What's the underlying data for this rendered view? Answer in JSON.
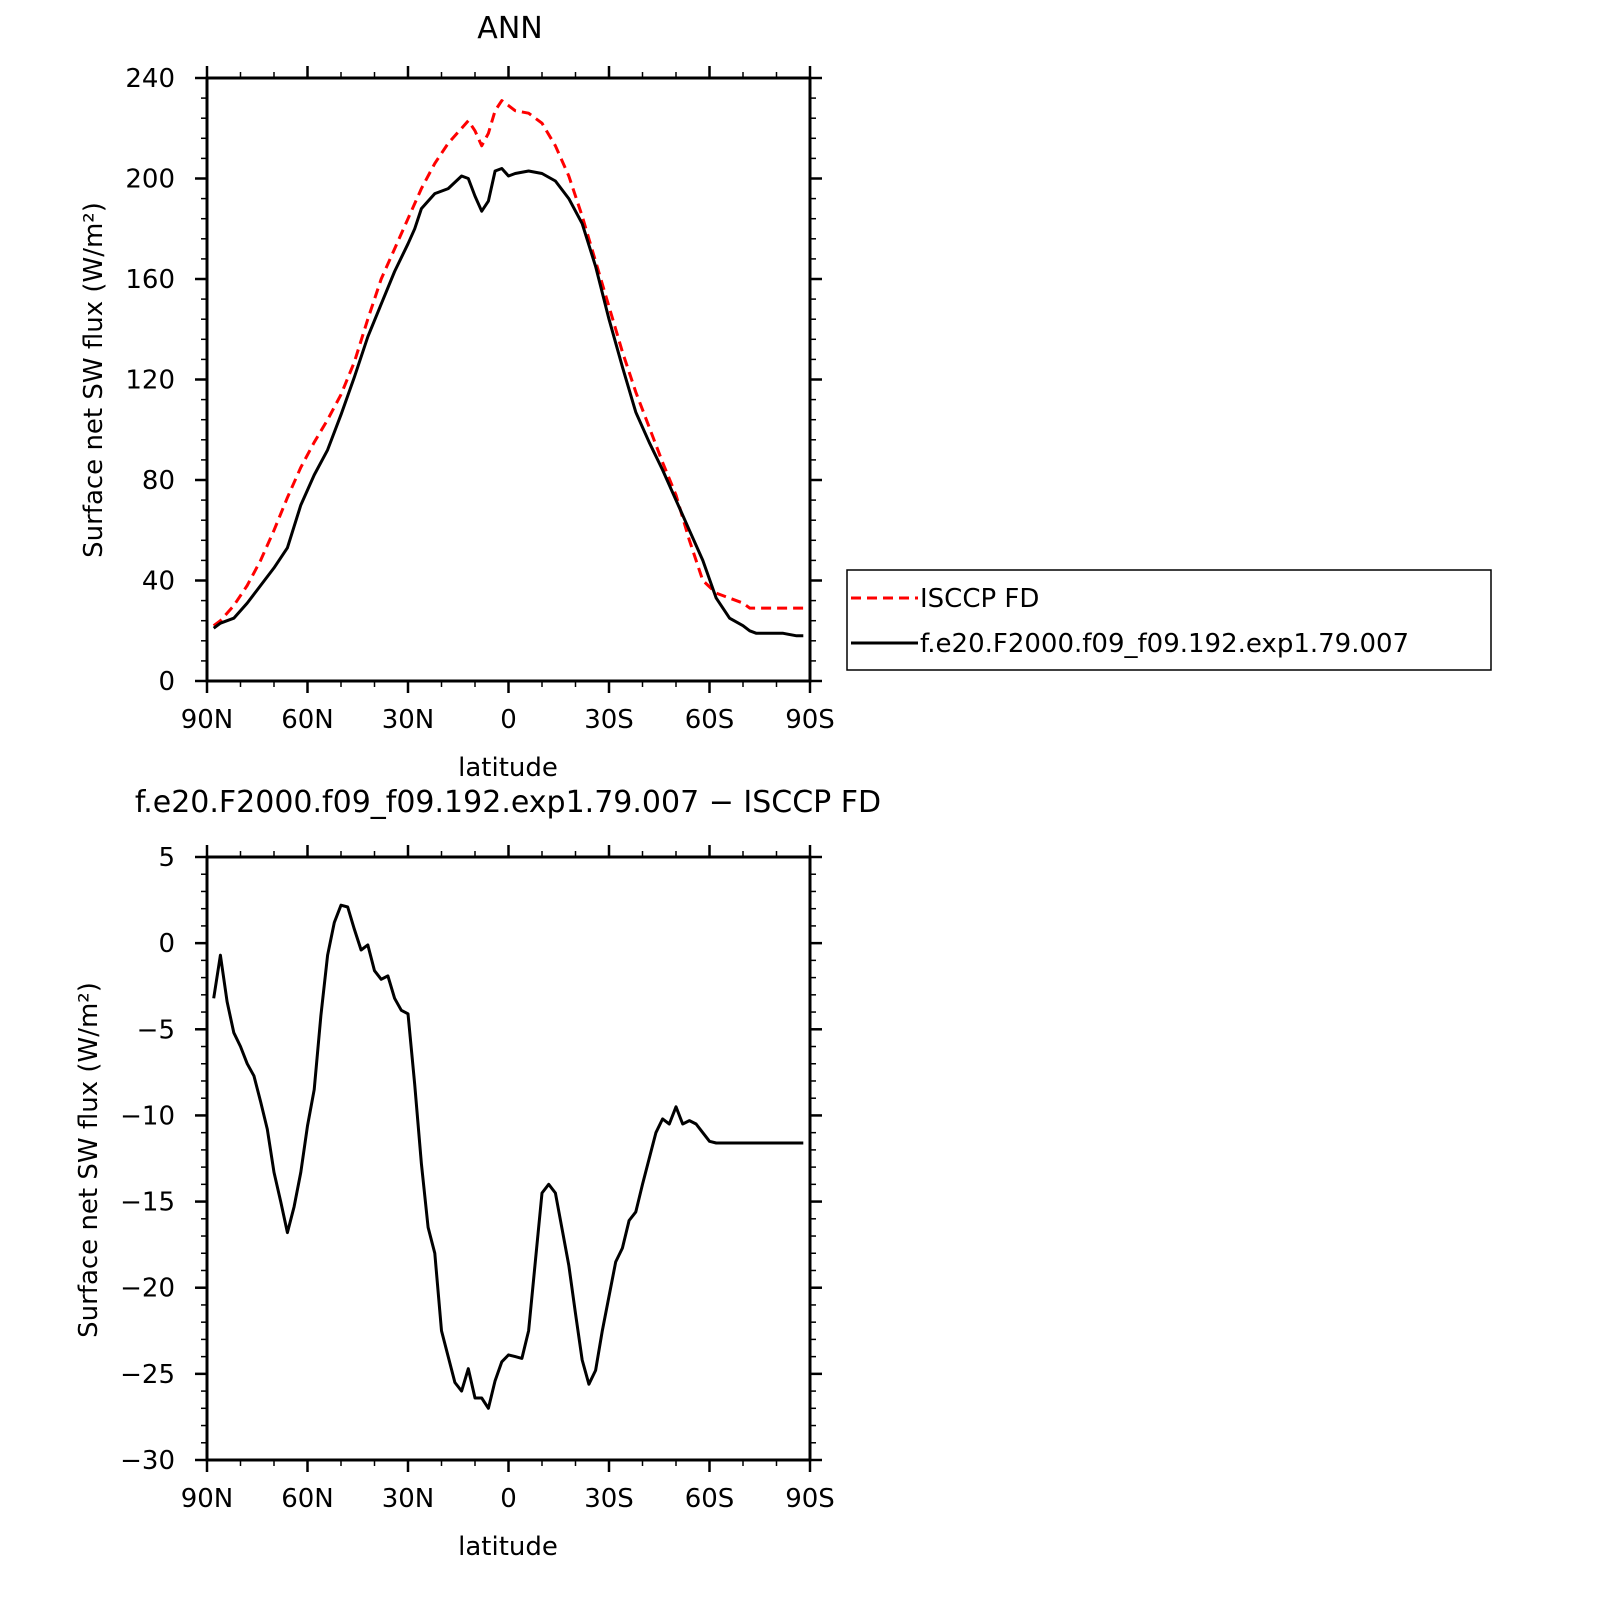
{
  "chart_data": [
    {
      "type": "line",
      "title": "ANN",
      "xlabel": "latitude",
      "ylabel": "Surface net SW flux (W/m²)",
      "xlim": [
        90,
        -90
      ],
      "ylim": [
        0,
        240
      ],
      "x_tick_labels": [
        "90N",
        "60N",
        "30N",
        "0",
        "30S",
        "60S",
        "90S"
      ],
      "x_tick_values": [
        90,
        60,
        30,
        0,
        -30,
        -60,
        -90
      ],
      "y_tick_labels": [
        "0",
        "40",
        "80",
        "120",
        "160",
        "200",
        "240"
      ],
      "y_tick_values": [
        0,
        40,
        80,
        120,
        160,
        200,
        240
      ],
      "legend": {
        "position": "right",
        "entries": [
          "ISCCP FD",
          "f.e20.F2000.f09_f09.192.exp1.79.007"
        ]
      },
      "series": [
        {
          "name": "ISCCP FD",
          "color": "#ff0000",
          "dash": "dashed",
          "x": [
            88,
            86,
            82,
            78,
            74,
            70,
            66,
            62,
            58,
            54,
            50,
            46,
            42,
            38,
            34,
            30,
            26,
            22,
            18,
            14,
            12,
            10,
            8,
            6,
            4,
            2,
            0,
            -2,
            -6,
            -10,
            -14,
            -18,
            -22,
            -26,
            -30,
            -34,
            -38,
            -42,
            -46,
            -50,
            -54,
            -58,
            -62,
            -66,
            -70,
            -72,
            -74,
            -78,
            -82,
            -86,
            -88
          ],
          "values": [
            22,
            24,
            30,
            38,
            48,
            60,
            73,
            85,
            95,
            104,
            114,
            127,
            144,
            160,
            172,
            184,
            196,
            206,
            214,
            220,
            223,
            219,
            213,
            218,
            227,
            231,
            229,
            227,
            226,
            222,
            213,
            201,
            185,
            167,
            149,
            131,
            115,
            101,
            87,
            74,
            56,
            40,
            35,
            33,
            31,
            29,
            29,
            29,
            29,
            29,
            29
          ]
        },
        {
          "name": "f.e20.F2000.f09_f09.192.exp1.79.007",
          "color": "#000000",
          "dash": "solid",
          "x": [
            88,
            86,
            82,
            78,
            74,
            70,
            66,
            62,
            58,
            54,
            50,
            46,
            42,
            38,
            34,
            30,
            28,
            26,
            22,
            18,
            14,
            12,
            10,
            8,
            6,
            4,
            2,
            0,
            -2,
            -6,
            -10,
            -14,
            -18,
            -22,
            -26,
            -30,
            -34,
            -38,
            -42,
            -46,
            -50,
            -54,
            -58,
            -62,
            -66,
            -70,
            -72,
            -74,
            -78,
            -82,
            -86,
            -88
          ],
          "values": [
            21,
            23,
            25,
            31,
            38,
            45,
            53,
            70,
            82,
            92,
            106,
            121,
            137,
            150,
            163,
            174,
            180,
            188,
            194,
            196,
            201,
            200,
            193,
            187,
            191,
            203,
            204,
            201,
            202,
            203,
            202,
            199,
            192,
            182,
            165,
            144,
            125,
            107,
            95,
            84,
            72,
            60,
            48,
            33,
            25,
            22,
            20,
            19,
            19,
            19,
            18,
            18
          ]
        }
      ]
    },
    {
      "type": "line",
      "title": "f.e20.F2000.f09_f09.192.exp1.79.007 − ISCCP FD",
      "xlabel": "latitude",
      "ylabel": "Surface net SW flux (W/m²)",
      "xlim": [
        90,
        -90
      ],
      "ylim": [
        -30,
        5
      ],
      "x_tick_labels": [
        "90N",
        "60N",
        "30N",
        "0",
        "30S",
        "60S",
        "90S"
      ],
      "x_tick_values": [
        90,
        60,
        30,
        0,
        -30,
        -60,
        -90
      ],
      "y_tick_labels": [
        "−30",
        "−25",
        "−20",
        "−15",
        "−10",
        "−5",
        "0",
        "5"
      ],
      "y_tick_values": [
        -30,
        -25,
        -20,
        -15,
        -10,
        -5,
        0,
        5
      ],
      "series": [
        {
          "color": "#000000",
          "dash": "solid",
          "x": [
            88,
            86,
            84,
            82,
            80,
            78,
            76,
            74,
            72,
            70,
            68,
            66,
            64,
            62,
            60,
            58,
            56,
            54,
            52,
            50,
            48,
            46,
            44,
            42,
            40,
            38,
            36,
            34,
            32,
            30,
            28,
            26,
            24,
            22,
            20,
            18,
            16,
            14,
            12,
            10,
            8,
            6,
            4,
            2,
            0,
            -2,
            -4,
            -6,
            -8,
            -10,
            -12,
            -14,
            -16,
            -18,
            -20,
            -22,
            -24,
            -26,
            -28,
            -30,
            -32,
            -34,
            -36,
            -38,
            -40,
            -42,
            -44,
            -46,
            -48,
            -50,
            -52,
            -54,
            -56,
            -58,
            -60,
            -62,
            -64,
            -66,
            -68,
            -70,
            -72,
            -74,
            -76,
            -78,
            -80,
            -82,
            -84,
            -86,
            -88
          ],
          "values": [
            -3.2,
            -0.7,
            -3.4,
            -5.2,
            -6.0,
            -7.0,
            -7.7,
            -9.2,
            -10.8,
            -13.3,
            -15.0,
            -16.8,
            -15.3,
            -13.3,
            -10.6,
            -8.5,
            -4.2,
            -0.7,
            1.2,
            2.2,
            2.1,
            0.8,
            -0.4,
            -0.1,
            -1.6,
            -2.1,
            -1.9,
            -3.2,
            -3.9,
            -4.1,
            -8.2,
            -12.8,
            -16.5,
            -18.0,
            -22.5,
            -24.0,
            -25.5,
            -26.0,
            -24.7,
            -26.4,
            -26.4,
            -27.0,
            -25.4,
            -24.3,
            -23.9,
            -24.0,
            -24.1,
            -22.5,
            -18.5,
            -14.5,
            -14.0,
            -14.5,
            -16.6,
            -18.7,
            -21.5,
            -24.2,
            -25.6,
            -24.8,
            -22.5,
            -20.5,
            -18.5,
            -17.7,
            -16.1,
            -15.6,
            -14.0,
            -12.5,
            -11.0,
            -10.2,
            -10.5,
            -9.5,
            -10.5,
            -10.3,
            -10.5,
            -11.0,
            -11.5,
            -11.6,
            -11.6,
            -11.6,
            -11.6,
            -11.6,
            -11.6,
            -11.6,
            -11.6,
            -11.6,
            -11.6,
            -11.6,
            -11.6,
            -11.6,
            -11.6
          ]
        }
      ]
    }
  ]
}
